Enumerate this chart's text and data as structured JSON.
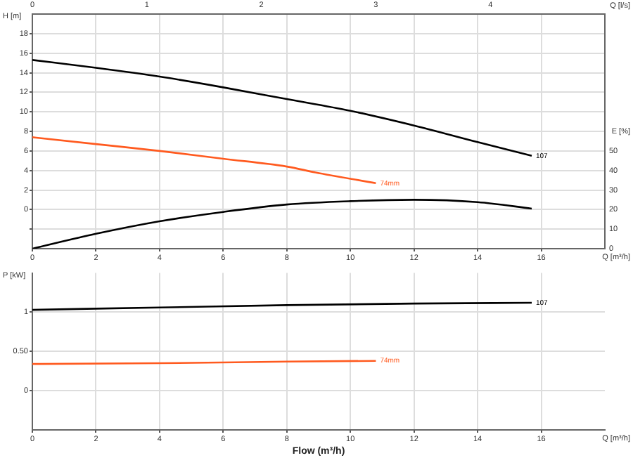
{
  "chart_data": [
    {
      "type": "line",
      "xlabel": "Q [m³/h]",
      "x2label": "Q [l/s]",
      "ylabel": "H [m]",
      "y2label": "E [%]",
      "xlim": [
        0,
        18
      ],
      "xticks": [
        0,
        2,
        4,
        6,
        8,
        10,
        12,
        14,
        16
      ],
      "x2lim": [
        0,
        5
      ],
      "x2ticks": [
        0,
        1,
        2,
        3,
        4
      ],
      "ylim": [
        -4,
        20
      ],
      "yticks": [
        {
          "value": -2,
          "label": null
        },
        0,
        2,
        4,
        6,
        8,
        10,
        12,
        14,
        16,
        18
      ],
      "y2lim": [
        0,
        120
      ],
      "y2ticks": [
        0,
        10,
        20,
        30,
        40,
        50
      ],
      "grid": true,
      "legend": false,
      "marker": "none",
      "line_style": "solid",
      "series": [
        {
          "name": "107",
          "color": "#000000",
          "x": [
            0,
            2,
            4,
            6,
            8,
            10,
            12,
            14,
            15.7
          ],
          "values": [
            15.3,
            14.5,
            13.6,
            12.5,
            11.3,
            10.1,
            8.6,
            6.9,
            5.5
          ]
        },
        {
          "name": "74mm",
          "color": "#ff5a1f",
          "x": [
            0,
            2,
            4,
            6,
            8,
            8.9,
            10.8
          ],
          "values": [
            7.4,
            6.7,
            6.0,
            5.2,
            4.4,
            3.8,
            2.7
          ]
        },
        {
          "color": "#000000",
          "axis": "y2",
          "x": [
            0,
            2,
            4,
            6,
            8,
            10,
            12,
            14,
            15.7
          ],
          "values": [
            0,
            7.6,
            14,
            18.8,
            22.6,
            24.3,
            25,
            23.8,
            20.5
          ]
        }
      ]
    },
    {
      "type": "line",
      "xlabel": "Flow (m³/h)",
      "ylabel": "P [kW]",
      "annotations": [
        "Q [m³/h]"
      ],
      "xlim": [
        0,
        18
      ],
      "xticks": [
        0,
        2,
        4,
        6,
        8,
        10,
        12,
        14,
        16
      ],
      "ylim": [
        -0.5,
        1.5
      ],
      "yticks": [
        0,
        {
          "value": 0.5,
          "label": "0.50"
        },
        1
      ],
      "grid": true,
      "legend": false,
      "marker": "none",
      "line_style": "solid",
      "series": [
        {
          "name": "107",
          "color": "#000000",
          "x": [
            0,
            4,
            8,
            12,
            15.7
          ],
          "values": [
            1.03,
            1.06,
            1.09,
            1.11,
            1.12
          ]
        },
        {
          "name": "74mm",
          "color": "#ff5a1f",
          "x": [
            0,
            4,
            8,
            10.8
          ],
          "values": [
            0.34,
            0.35,
            0.37,
            0.38
          ]
        }
      ]
    }
  ]
}
